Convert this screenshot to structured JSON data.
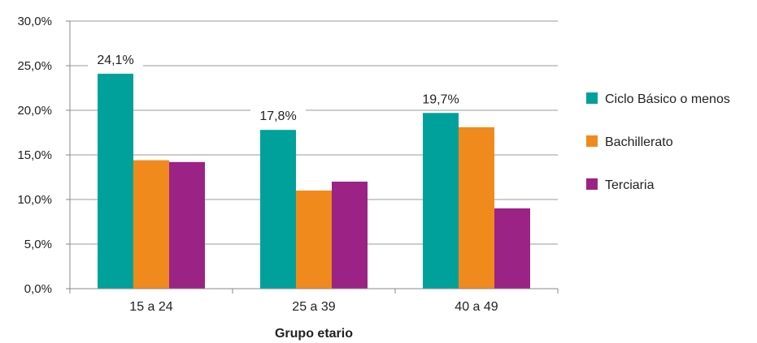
{
  "chart_data": {
    "type": "bar",
    "title": "",
    "xlabel": "Grupo etario",
    "ylabel": "",
    "categories": [
      "15 a 24",
      "25 a 39",
      "40 a 49"
    ],
    "series": [
      {
        "name": "Ciclo Básico o menos",
        "values": [
          24.1,
          17.8,
          19.7
        ],
        "color": "#00A19A"
      },
      {
        "name": "Bachillerato",
        "values": [
          14.4,
          11.0,
          18.1
        ],
        "color": "#F08A1D"
      },
      {
        "name": "Terciaria",
        "values": [
          14.2,
          12.0,
          9.0
        ],
        "color": "#9B2385"
      }
    ],
    "ylim": [
      0,
      30
    ],
    "ytick_values": [
      0,
      5,
      10,
      15,
      20,
      25,
      30
    ],
    "ytick_labels": [
      "0,0%",
      "5,0%",
      "10,0%",
      "15,0%",
      "20,0%",
      "25,0%",
      "30,0%"
    ],
    "data_labels": [
      {
        "series": 0,
        "category": 0,
        "text": "24,1%"
      },
      {
        "series": 0,
        "category": 1,
        "text": "17,8%"
      },
      {
        "series": 0,
        "category": 2,
        "text": "19,7%"
      }
    ],
    "grid": true,
    "legend_position": "right"
  }
}
